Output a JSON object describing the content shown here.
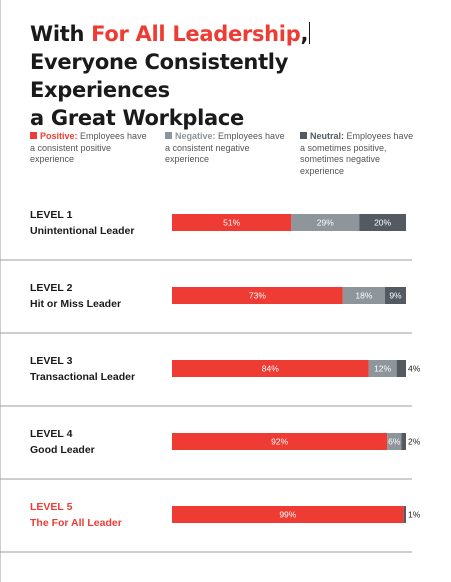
{
  "title": {
    "line1_prefix": "With ",
    "line1_accent": "For All Leadership",
    "line1_suffix": ",",
    "line2": "Everyone Consistently Experiences",
    "line3": "a Great Workplace"
  },
  "legend": [
    {
      "key": "positive",
      "label": "Positive:",
      "text_lines": [
        "Employees have",
        "a consistent positive",
        "experience"
      ],
      "color": "#ee3b33"
    },
    {
      "key": "negative",
      "label": "Negative:",
      "text_lines": [
        "Employees have",
        "a consistent negative",
        "experience"
      ],
      "color": "#8e959b"
    },
    {
      "key": "neutral",
      "label": "Neutral:",
      "text_lines": [
        "Employees have",
        "a sometimes positive,",
        "sometimes negative",
        "experience"
      ],
      "color": "#545a62"
    }
  ],
  "colors": {
    "positive": "#ee3b33",
    "negative": "#8e959b",
    "neutral": "#545a62",
    "highlight_text": "#ee3b33",
    "divider": "#9aa0a6"
  },
  "chart_data": {
    "type": "bar",
    "orientation": "horizontal",
    "stacked": true,
    "xlim": [
      0,
      100
    ],
    "categories": [
      {
        "level": "LEVEL 1",
        "name": "Unintentional Leader",
        "highlight": false
      },
      {
        "level": "LEVEL 2",
        "name": "Hit or Miss Leader",
        "highlight": false
      },
      {
        "level": "LEVEL 3",
        "name": "Transactional Leader",
        "highlight": false
      },
      {
        "level": "LEVEL 4",
        "name": "Good Leader",
        "highlight": false
      },
      {
        "level": "LEVEL 5",
        "name": "The For All  Leader",
        "highlight": true
      }
    ],
    "series": [
      {
        "name": "Positive",
        "color": "#ee3b33",
        "values": [
          51,
          73,
          84,
          92,
          99
        ]
      },
      {
        "name": "Negative",
        "color": "#8e959b",
        "values": [
          29,
          18,
          12,
          6,
          0
        ]
      },
      {
        "name": "Neutral",
        "color": "#545a62",
        "values": [
          20,
          9,
          4,
          2,
          1
        ]
      }
    ],
    "data_labels": [
      [
        "51%",
        "29%",
        "20%"
      ],
      [
        "73%",
        "18%",
        "9%"
      ],
      [
        "84%",
        "12%",
        "4%"
      ],
      [
        "92%",
        "6%",
        "2%"
      ],
      [
        "99%",
        "",
        "1%"
      ]
    ],
    "label_outside_for_neutral": [
      false,
      false,
      true,
      true,
      true
    ]
  }
}
